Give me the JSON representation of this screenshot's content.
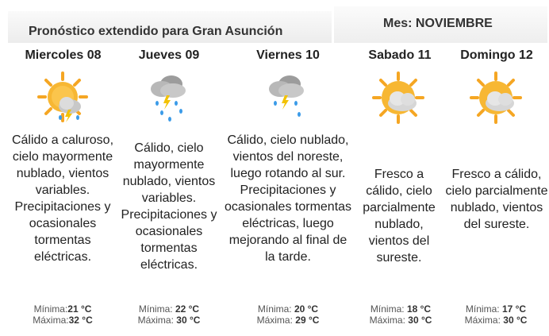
{
  "header": {
    "title": "Pronóstico extendido para Gran Asunción",
    "month": "Mes: NOVIEMBRE"
  },
  "labels": {
    "min": "Mínima:",
    "max": "Máxima:"
  },
  "days": [
    {
      "name": "Miercoles 08",
      "icon": "sun-cloud-storm-icon",
      "desc": "Cálido a caluroso, cielo mayormente nublado, vientos variables. Precipitaciones y ocasionales tormentas eléctricas.",
      "min": "21 °C",
      "max": "32 °C"
    },
    {
      "name": "Jueves 09",
      "icon": "cloud-rain-storm-icon",
      "desc": "Cálido, cielo mayormente nublado, vientos variables. Precipitaciones y ocasionales tormentas eléctricas.",
      "min": "22 °C",
      "max": "30 °C"
    },
    {
      "name": "Viernes 10",
      "icon": "cloud-rain-storm-icon",
      "desc": "Cálido, cielo nublado, vientos del noreste, luego rotando al sur. Precipitaciones y ocasionales tormentas eléctricas, luego mejorando al final de la tarde.",
      "min": "20 °C",
      "max": "29 °C"
    },
    {
      "name": "Sabado 11",
      "icon": "sun-cloud-icon",
      "desc": "Fresco a cálido, cielo parcialmente nublado, vientos del sureste.",
      "min": "18 °C",
      "max": "30 °C"
    },
    {
      "name": "Domingo 12",
      "icon": "sun-cloud-icon",
      "desc": "Fresco a cálido, cielo parcialmente nublado, vientos del sureste.",
      "min": "17 °C",
      "max": "30 °C"
    }
  ]
}
